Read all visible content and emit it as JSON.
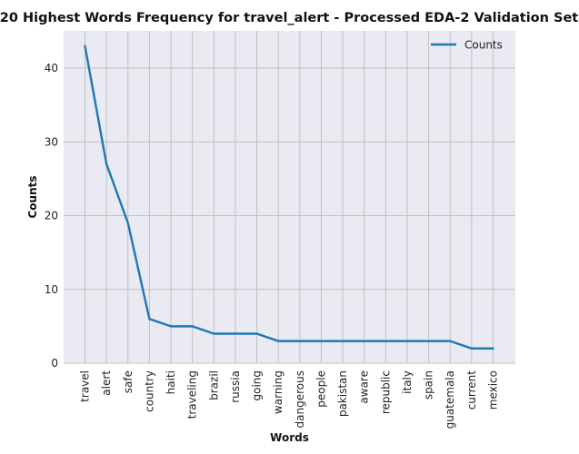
{
  "chart_data": {
    "type": "line",
    "title": "20 Highest Words Frequency for travel_alert - Processed EDA-2 Validation Set",
    "xlabel": "Words",
    "ylabel": "Counts",
    "categories": [
      "travel",
      "alert",
      "safe",
      "country",
      "haiti",
      "traveling",
      "brazil",
      "russia",
      "going",
      "warning",
      "dangerous",
      "people",
      "pakistan",
      "aware",
      "republic",
      "italy",
      "spain",
      "guatemala",
      "current",
      "mexico"
    ],
    "series": [
      {
        "name": "Counts",
        "values": [
          43,
          27,
          19,
          6,
          5,
          5,
          4,
          4,
          4,
          3,
          3,
          3,
          3,
          3,
          3,
          3,
          3,
          3,
          2,
          2
        ],
        "color": "#1f77b4"
      }
    ],
    "ylim": [
      0,
      45.05
    ],
    "yticks": [
      0,
      10,
      20,
      30,
      40
    ],
    "grid": true,
    "legend_position": "top-right",
    "background_color": "#eaeaf2",
    "grid_color": "#c0c0c0"
  }
}
